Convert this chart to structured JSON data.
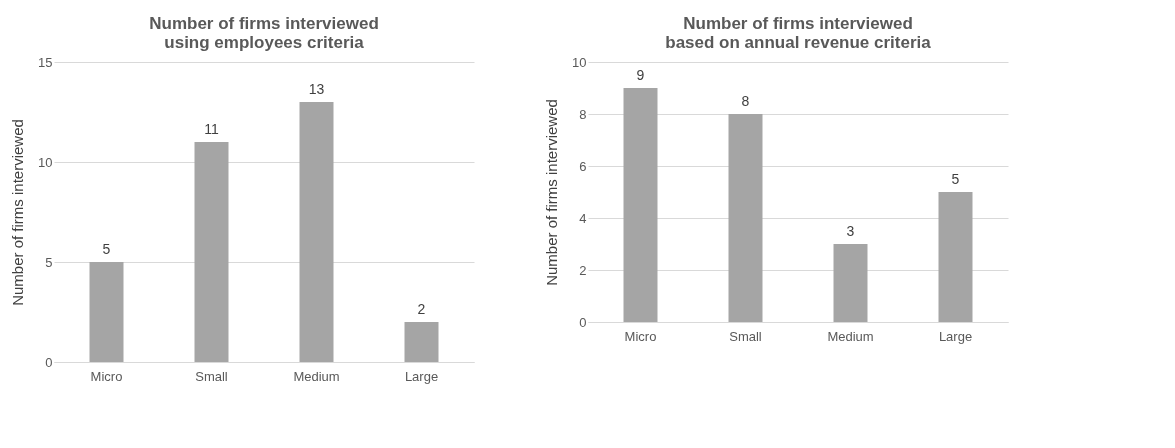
{
  "chart_data": [
    {
      "type": "bar",
      "title": "Number of firms interviewed using employees criteria",
      "ylabel": "Number of firms interviewed",
      "categories": [
        "Micro",
        "Small",
        "Medium",
        "Large"
      ],
      "values": [
        5,
        11,
        13,
        2
      ],
      "color": "#a5a5a5",
      "ylim": [
        0,
        15
      ],
      "yticks": [
        0,
        5,
        10,
        15
      ],
      "grid": "y",
      "data_labels": true
    },
    {
      "type": "bar",
      "title": "Number of firms interviewed based on annual revenue criteria",
      "ylabel": "Number of firms interviewed",
      "categories": [
        "Micro",
        "Small",
        "Medium",
        "Large"
      ],
      "values": [
        9,
        8,
        3,
        5
      ],
      "color": "#a5a5a5",
      "ylim": [
        0,
        10
      ],
      "yticks": [
        0,
        2,
        4,
        6,
        8,
        10
      ],
      "grid": "y",
      "data_labels": true
    }
  ]
}
